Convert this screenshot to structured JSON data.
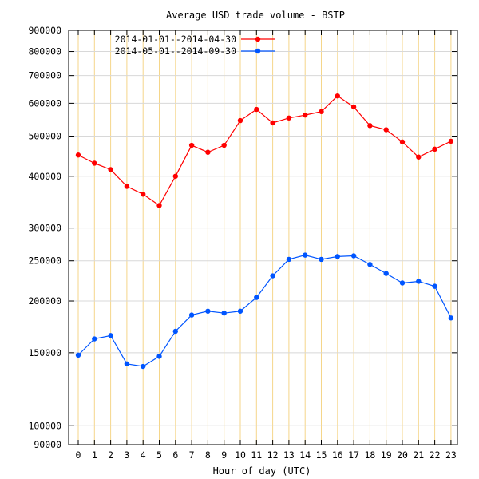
{
  "chart_data": {
    "type": "line",
    "title": "Average USD trade volume - BSTP",
    "xlabel": "Hour of day (UTC)",
    "ylabel": "",
    "y_scale": "log",
    "ylim": [
      90000,
      900000
    ],
    "xlim": [
      -1,
      23.2
    ],
    "grid": true,
    "legend_position": "top-left",
    "x": [
      0,
      1,
      2,
      3,
      4,
      5,
      6,
      7,
      8,
      9,
      10,
      11,
      12,
      13,
      14,
      15,
      16,
      17,
      18,
      19,
      20,
      21,
      22,
      23
    ],
    "x_tick_labels": [
      "0",
      "1",
      "2",
      "3",
      "4",
      "5",
      "6",
      "7",
      "8",
      "9",
      "10",
      "11",
      "12",
      "13",
      "14",
      "15",
      "16",
      "17",
      "18",
      "19",
      "20",
      "21",
      "22",
      "23"
    ],
    "y_ticks": [
      90000,
      100000,
      150000,
      200000,
      250000,
      300000,
      400000,
      500000,
      600000,
      700000,
      800000,
      900000
    ],
    "y_tick_labels": [
      "90000",
      "100000",
      "150000",
      "200000",
      "250000",
      "300000",
      "400000",
      "500000",
      "600000",
      "700000",
      "800000",
      "900000"
    ],
    "series": [
      {
        "name": "2014-01-01--2014-04-30",
        "color": "#ff0000",
        "values": [
          450000,
          430000,
          415000,
          378000,
          362000,
          340000,
          400000,
          475000,
          457000,
          475000,
          545000,
          580000,
          538000,
          553000,
          562000,
          573000,
          625000,
          588000,
          530000,
          518000,
          484000,
          445000,
          465000,
          486000
        ]
      },
      {
        "name": "2014-05-01--2014-09-30",
        "color": "#0055ff",
        "values": [
          148000,
          162000,
          165000,
          141000,
          139000,
          147000,
          169000,
          185000,
          189000,
          187000,
          189000,
          204000,
          230000,
          252000,
          258000,
          252000,
          256000,
          257000,
          245000,
          233000,
          221000,
          223000,
          217000,
          182000
        ]
      }
    ]
  }
}
